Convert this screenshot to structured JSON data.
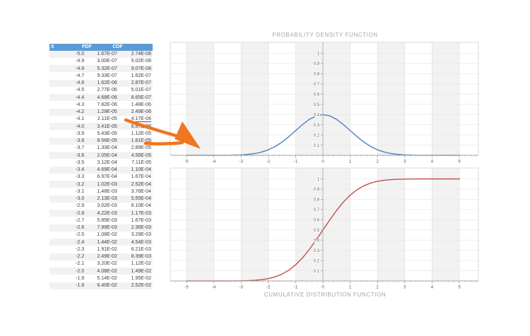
{
  "table": {
    "headers": {
      "x": "X",
      "pdf": "PDF",
      "cdf": "CDF"
    },
    "header_bg": "#5b9bd5",
    "stripe_color": "#f2f2f2",
    "rows": [
      [
        "-5.0",
        "1.67E-07",
        "2.74E-08"
      ],
      [
        "-4.9",
        "3.00E-07",
        "5.02E-08"
      ],
      [
        "-4.8",
        "5.32E-07",
        "9.07E-08"
      ],
      [
        "-4.7",
        "9.33E-07",
        "1.62E-07"
      ],
      [
        "-4.6",
        "1.62E-06",
        "2.87E-07"
      ],
      [
        "-4.5",
        "2.77E-06",
        "5.01E-07"
      ],
      [
        "-4.4",
        "4.68E-06",
        "8.65E-07"
      ],
      [
        "-4.3",
        "7.82E-06",
        "1.48E-06"
      ],
      [
        "-4.2",
        "1.29E-05",
        "2.49E-06"
      ],
      [
        "-4.1",
        "2.11E-05",
        "4.17E-06"
      ],
      [
        "-4.0",
        "3.41E-05",
        "6.87E-06"
      ],
      [
        "-3.9",
        "5.43E-05",
        "1.12E-05"
      ],
      [
        "-3.8",
        "8.56E-05",
        "1.81E-05"
      ],
      [
        "-3.7",
        "1.33E-04",
        "2.89E-05"
      ],
      [
        "-3.6",
        "2.05E-04",
        "4.56E-05"
      ],
      [
        "-3.5",
        "3.12E-04",
        "7.11E-05"
      ],
      [
        "-3.4",
        "4.69E-04",
        "1.10E-04"
      ],
      [
        "-3.3",
        "6.97E-04",
        "1.67E-04"
      ],
      [
        "-3.2",
        "1.02E-03",
        "2.52E-04"
      ],
      [
        "-3.1",
        "1.48E-03",
        "3.76E-04"
      ],
      [
        "-3.0",
        "2.13E-03",
        "5.55E-04"
      ],
      [
        "-2.9",
        "3.02E-03",
        "8.10E-04"
      ],
      [
        "-2.8",
        "4.22E-03",
        "1.17E-03"
      ],
      [
        "-2.7",
        "5.85E-03",
        "1.67E-03"
      ],
      [
        "-2.6",
        "7.99E-03",
        "2.36E-03"
      ],
      [
        "-2.5",
        "1.08E-02",
        "3.29E-03"
      ],
      [
        "-2.4",
        "1.44E-02",
        "4.54E-03"
      ],
      [
        "-2.3",
        "1.91E-02",
        "6.21E-03"
      ],
      [
        "-2.2",
        "2.49E-02",
        "8.39E-03"
      ],
      [
        "-2.1",
        "3.20E-02",
        "1.12E-02"
      ],
      [
        "-2.0",
        "4.08E-02",
        "1.49E-02"
      ],
      [
        "-1.9",
        "5.14E-02",
        "1.95E-02"
      ],
      [
        "-1.8",
        "6.40E-02",
        "2.52E-02"
      ]
    ],
    "highlight": {
      "row_index": 9,
      "col_index": 2,
      "underline_color": "#a33c22"
    }
  },
  "chart_data": [
    {
      "type": "line",
      "title": "PROBABILITY DENSITY FUNCTION",
      "series_name": "PDF",
      "color": "#4f81bd",
      "xlim": [
        -5.6,
        5.7
      ],
      "ylim": [
        0,
        1.1
      ],
      "xticks": [
        -5,
        -4,
        -3,
        -2,
        -1,
        0,
        1,
        2,
        3,
        4,
        5
      ],
      "yticks": [
        0.1,
        0.2,
        0.3,
        0.4,
        0.5,
        0.6,
        0.7,
        0.8,
        0.9,
        1
      ],
      "grid": true,
      "legend": "none",
      "shaded_bands": [
        [
          -5,
          -4
        ],
        [
          -3,
          -2
        ],
        [
          -1,
          1
        ],
        [
          2,
          3
        ],
        [
          4,
          5
        ]
      ],
      "band_color": "#f2f2f2",
      "x": [
        -5,
        -4.75,
        -4.5,
        -4.25,
        -4,
        -3.75,
        -3.5,
        -3.25,
        -3,
        -2.75,
        -2.5,
        -2.25,
        -2,
        -1.75,
        -1.5,
        -1.25,
        -1,
        -0.75,
        -0.5,
        -0.25,
        0,
        0.25,
        0.5,
        0.75,
        1,
        1.25,
        1.5,
        1.75,
        2,
        2.25,
        2.5,
        2.75,
        3,
        3.25,
        3.5,
        3.75,
        4,
        4.25,
        4.5,
        4.75,
        5
      ],
      "y": [
        1e-06,
        5e-06,
        1.6e-05,
        4.8e-05,
        0.000134,
        0.000351,
        0.000873,
        0.002029,
        0.004432,
        0.009094,
        0.017528,
        0.03174,
        0.053991,
        0.086277,
        0.129518,
        0.182649,
        0.241971,
        0.301137,
        0.352065,
        0.386668,
        0.398942,
        0.386668,
        0.352065,
        0.301137,
        0.241971,
        0.182649,
        0.129518,
        0.086277,
        0.053991,
        0.03174,
        0.017528,
        0.009094,
        0.004432,
        0.002029,
        0.000873,
        0.000351,
        0.000134,
        4.8e-05,
        1.6e-05,
        5e-06,
        1e-06
      ]
    },
    {
      "type": "line",
      "title": "CUMULATIVE DISTRIBUTION FUNCTION",
      "series_name": "CDF",
      "color": "#c0504d",
      "xlim": [
        -5.6,
        5.7
      ],
      "ylim": [
        0,
        1.1
      ],
      "xticks": [
        -5,
        -4,
        -3,
        -2,
        -1,
        0,
        1,
        2,
        3,
        4,
        5
      ],
      "yticks": [
        0.1,
        0.2,
        0.3,
        0.4,
        0.5,
        0.6,
        0.7,
        0.8,
        0.9,
        1
      ],
      "grid": true,
      "legend": "none",
      "shaded_bands": [
        [
          -5,
          -4
        ],
        [
          -3,
          -2
        ],
        [
          -1,
          1
        ],
        [
          2,
          3
        ],
        [
          4,
          5
        ]
      ],
      "band_color": "#f2f2f2",
      "x": [
        -5,
        -4.75,
        -4.5,
        -4.25,
        -4,
        -3.75,
        -3.5,
        -3.25,
        -3,
        -2.75,
        -2.5,
        -2.25,
        -2,
        -1.75,
        -1.5,
        -1.25,
        -1,
        -0.75,
        -0.5,
        -0.25,
        0,
        0.25,
        0.5,
        0.75,
        1,
        1.25,
        1.5,
        1.75,
        2,
        2.25,
        2.5,
        2.75,
        3,
        3.25,
        3.5,
        3.75,
        4,
        4.25,
        4.5,
        4.75,
        5
      ],
      "y": [
        3e-07,
        1e-06,
        3.4e-06,
        1.07e-05,
        3.17e-05,
        8.84e-05,
        0.000233,
        0.000577,
        0.00135,
        0.00298,
        0.00621,
        0.012224,
        0.02275,
        0.040059,
        0.066807,
        0.10565,
        0.158655,
        0.226627,
        0.308538,
        0.401294,
        0.5,
        0.598706,
        0.691462,
        0.773373,
        0.841345,
        0.89435,
        0.933193,
        0.959941,
        0.97725,
        0.987776,
        0.99379,
        0.99702,
        0.99865,
        0.999423,
        0.999767,
        0.999912,
        0.999968,
        0.999989,
        0.999997,
        0.999999,
        1
      ]
    }
  ],
  "annotation": {
    "arrow_color": "#f0761f"
  }
}
